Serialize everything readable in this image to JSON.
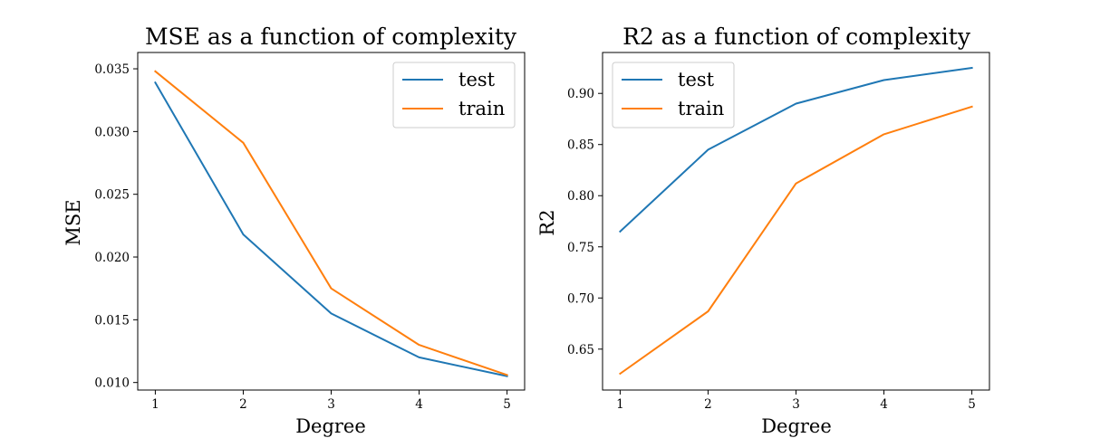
{
  "colors": {
    "test": "#1f77b4",
    "train": "#ff7f0e"
  },
  "chart_data": [
    {
      "type": "line",
      "title": "MSE as a function of complexity",
      "xlabel": "Degree",
      "ylabel": "MSE",
      "x": [
        1,
        2,
        3,
        4,
        5
      ],
      "xticks": [
        "1",
        "2",
        "3",
        "4",
        "5"
      ],
      "yticks": [
        "0.010",
        "0.015",
        "0.020",
        "0.025",
        "0.030",
        "0.035"
      ],
      "ytick_values": [
        0.01,
        0.015,
        0.02,
        0.025,
        0.03,
        0.035
      ],
      "xlim": [
        0.8,
        5.2
      ],
      "ylim": [
        0.0094,
        0.0363
      ],
      "legend": "upper right",
      "series": [
        {
          "name": "test",
          "values": [
            0.0339,
            0.0218,
            0.0155,
            0.012,
            0.0105
          ]
        },
        {
          "name": "train",
          "values": [
            0.0348,
            0.0291,
            0.0175,
            0.013,
            0.0106
          ]
        }
      ]
    },
    {
      "type": "line",
      "title": "R2 as a function of complexity",
      "xlabel": "Degree",
      "ylabel": "R2",
      "x": [
        1,
        2,
        3,
        4,
        5
      ],
      "xticks": [
        "1",
        "2",
        "3",
        "4",
        "5"
      ],
      "yticks": [
        "0.65",
        "0.70",
        "0.75",
        "0.80",
        "0.85",
        "0.90"
      ],
      "ytick_values": [
        0.65,
        0.7,
        0.75,
        0.8,
        0.85,
        0.9
      ],
      "xlim": [
        0.8,
        5.2
      ],
      "ylim": [
        0.61,
        0.94
      ],
      "legend": "upper left",
      "series": [
        {
          "name": "test",
          "values": [
            0.765,
            0.845,
            0.89,
            0.913,
            0.925
          ]
        },
        {
          "name": "train",
          "values": [
            0.626,
            0.687,
            0.812,
            0.86,
            0.887
          ]
        }
      ]
    }
  ]
}
